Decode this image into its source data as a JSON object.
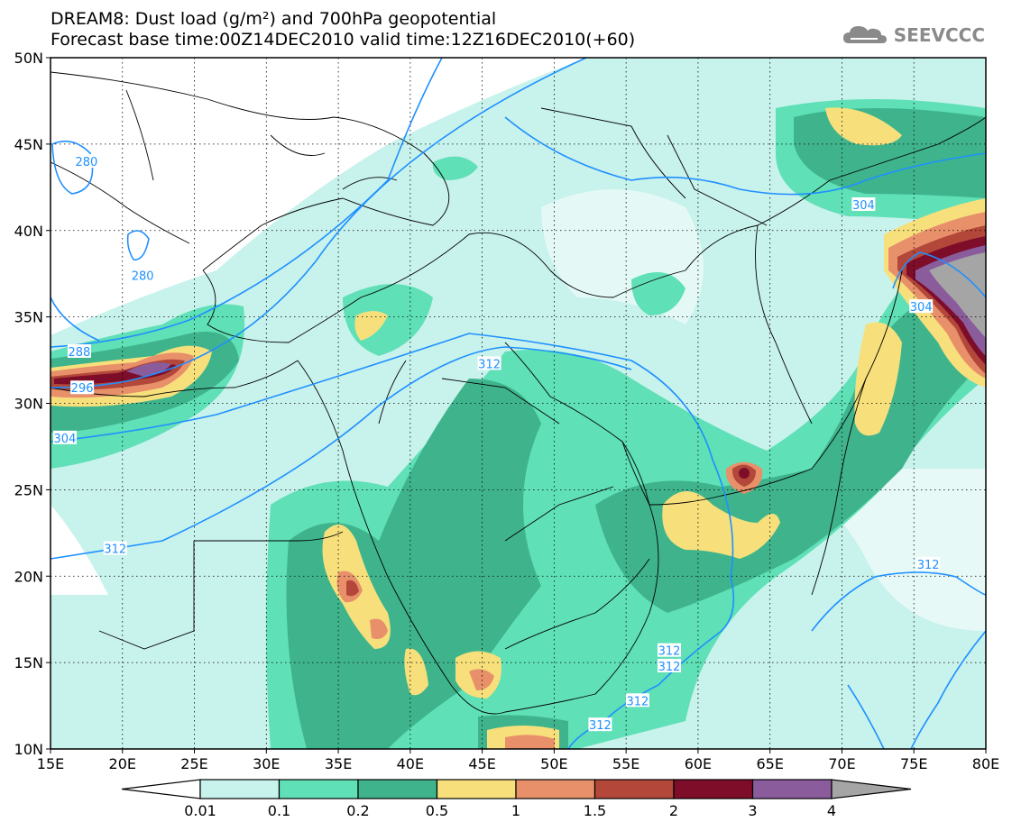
{
  "header": {
    "title": "DREAM8: Dust load (g/m²) and 700hPa geopotential",
    "subtitle": "Forecast base time:00Z14DEC2010 valid time:12Z16DEC2010(+60)",
    "logo_text": "SEEVCCC"
  },
  "map": {
    "lat_labels": [
      "50N",
      "45N",
      "40N",
      "35N",
      "30N",
      "25N",
      "20N",
      "15N",
      "10N"
    ],
    "lon_labels": [
      "15E",
      "20E",
      "25E",
      "30E",
      "35E",
      "40E",
      "45E",
      "50E",
      "55E",
      "60E",
      "65E",
      "70E",
      "75E",
      "80E"
    ],
    "contour_labels": [
      {
        "text": "280",
        "lon": 17.5,
        "lat": 44.0
      },
      {
        "text": "280",
        "lon": 21.4,
        "lat": 37.4
      },
      {
        "text": "288",
        "lon": 17.0,
        "lat": 33.0
      },
      {
        "text": "296",
        "lon": 17.2,
        "lat": 30.9
      },
      {
        "text": "304",
        "lon": 16.0,
        "lat": 28.0
      },
      {
        "text": "312",
        "lon": 19.5,
        "lat": 21.6
      },
      {
        "text": "312",
        "lon": 45.5,
        "lat": 32.3
      },
      {
        "text": "304",
        "lon": 71.5,
        "lat": 41.5
      },
      {
        "text": "304",
        "lon": 75.5,
        "lat": 35.6
      },
      {
        "text": "312",
        "lon": 58.0,
        "lat": 15.7
      },
      {
        "text": "312",
        "lon": 58.0,
        "lat": 14.8
      },
      {
        "text": "312",
        "lon": 55.8,
        "lat": 12.8
      },
      {
        "text": "312",
        "lon": 53.2,
        "lat": 11.4
      },
      {
        "text": "312",
        "lon": 76.0,
        "lat": 20.7
      }
    ]
  },
  "colorbar": {
    "tick_labels": [
      "0.01",
      "0.1",
      "0.2",
      "0.5",
      "1",
      "1.5",
      "2",
      "3",
      "4"
    ],
    "colors": [
      "#c8f2ec",
      "#5fe0b6",
      "#3fb48c",
      "#f7e07c",
      "#e8906a",
      "#b2473a",
      "#7e0d2a",
      "#8a5c9c",
      "#a5a5a5"
    ]
  },
  "colors": {
    "geopotential_contour": "#1e90ff",
    "boundaries": "#000000"
  }
}
